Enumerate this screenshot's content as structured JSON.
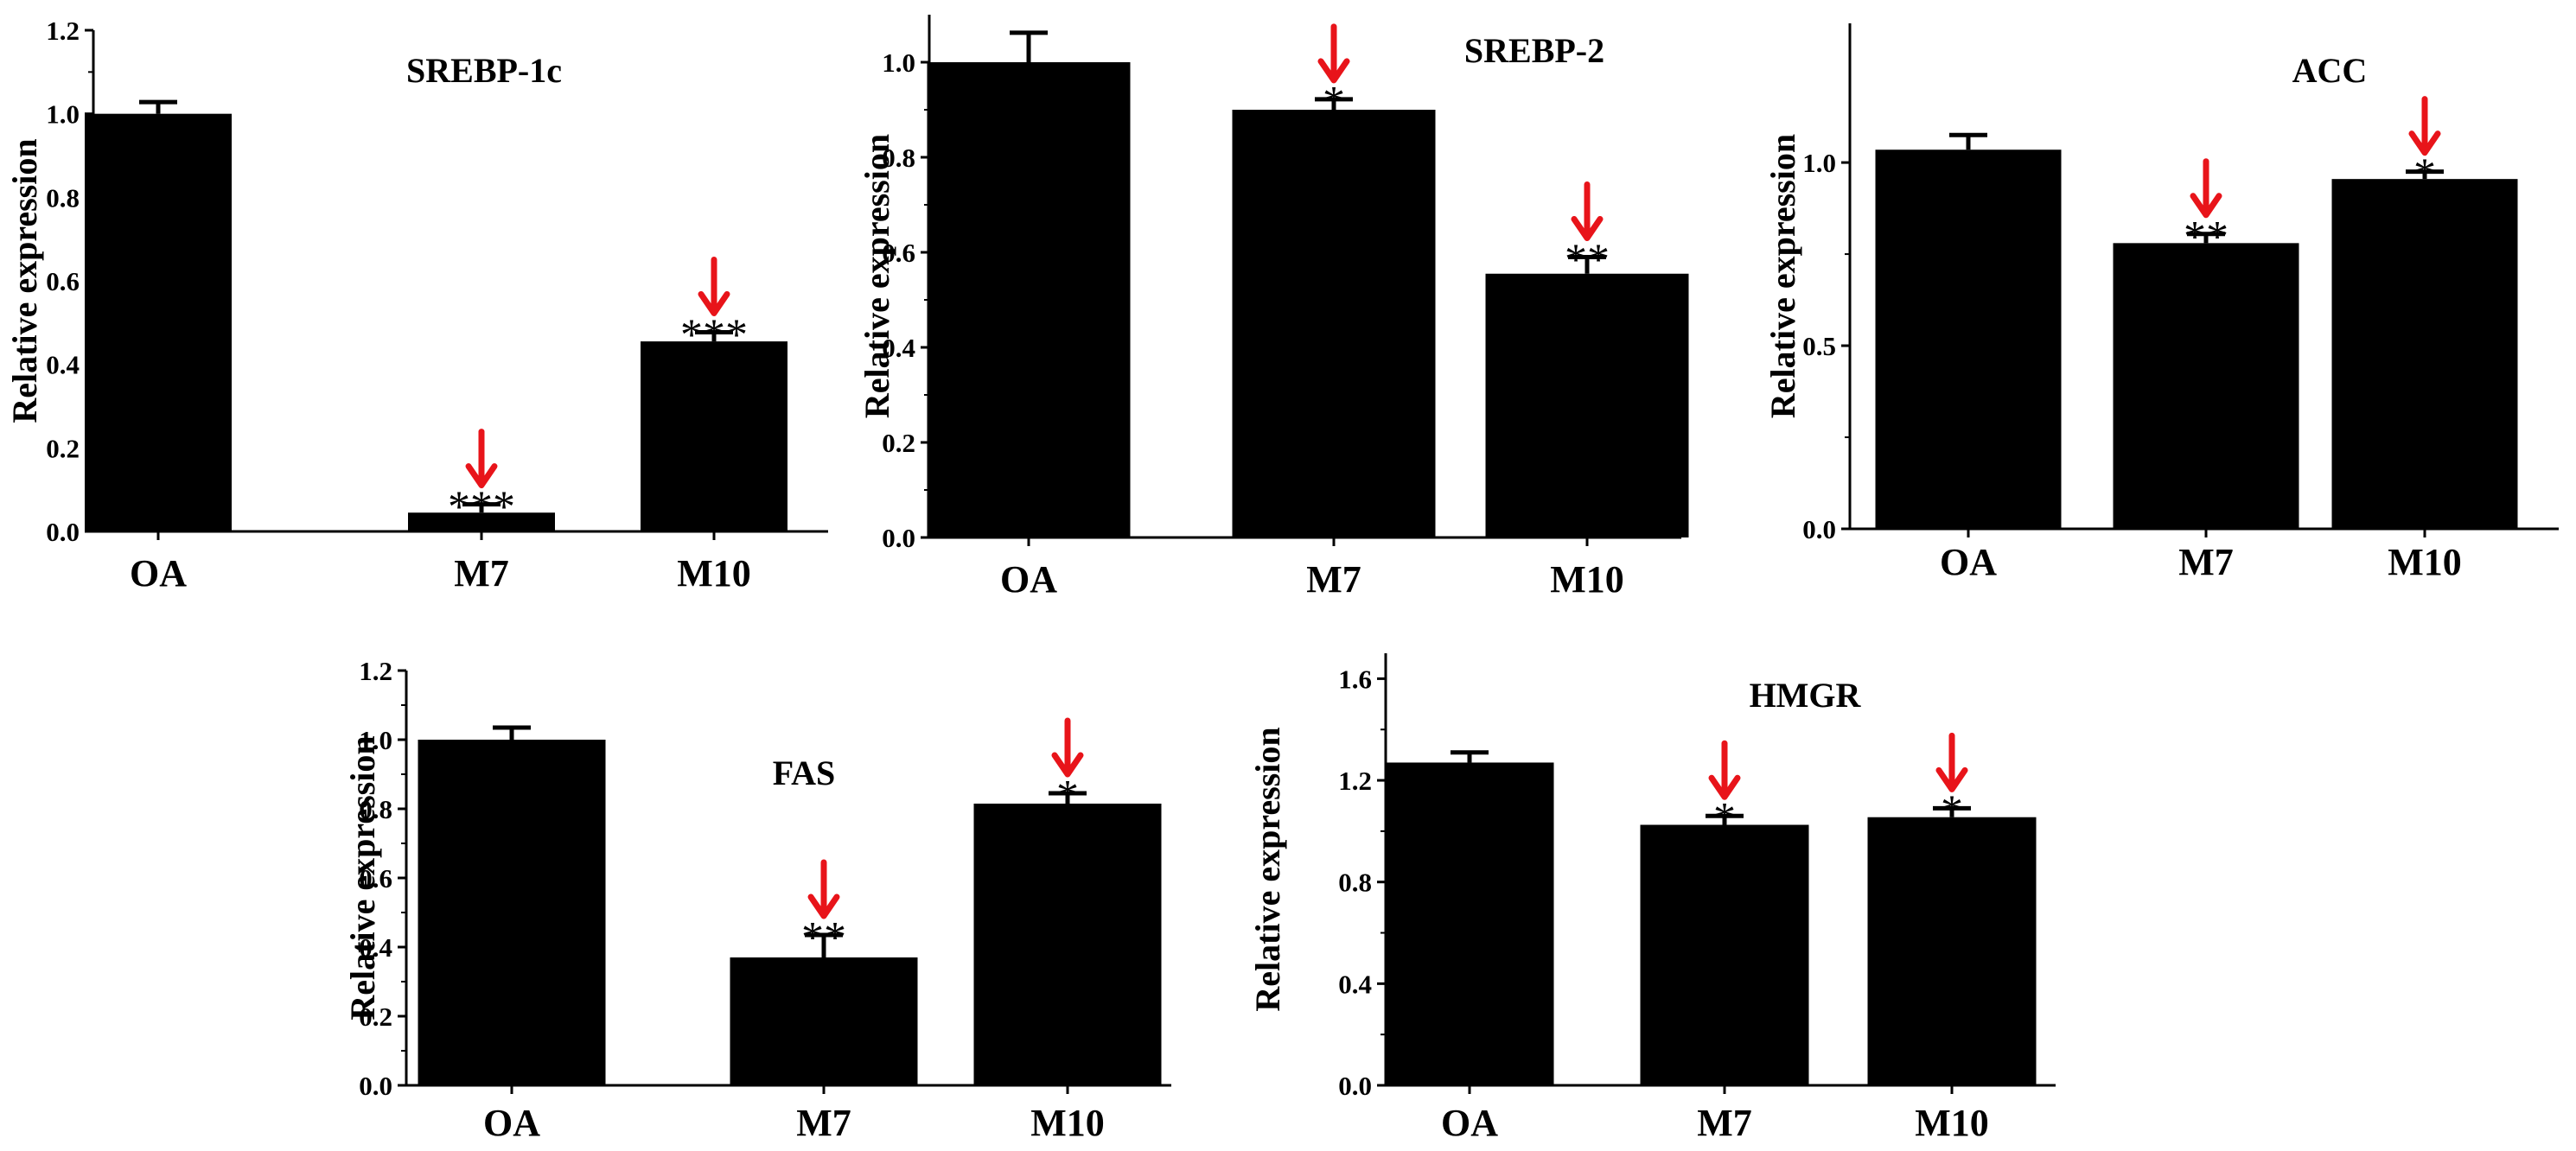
{
  "chart_data": [
    {
      "type": "bar",
      "title": "SREBP-1c",
      "ylabel": "Relative expression",
      "xlabel": "",
      "categories": [
        "OA",
        "M7",
        "M10"
      ],
      "values": [
        1.0,
        0.045,
        0.455
      ],
      "errors": [
        0.028,
        0.02,
        0.022
      ],
      "significance": [
        "",
        "***",
        "***"
      ],
      "highlight_arrows": [
        false,
        true,
        true
      ],
      "arrow_color": "#e8141a",
      "ylim": [
        0,
        1.2
      ],
      "yticks": [
        "0.0",
        "0.2",
        "0.4",
        "0.6",
        "0.8",
        "1.0",
        "1.2"
      ],
      "ytick_values": [
        0,
        0.2,
        0.4,
        0.6,
        0.8,
        1.0,
        1.2
      ]
    },
    {
      "type": "bar",
      "title": "SREBP-2",
      "ylabel": "Relative expression",
      "xlabel": "",
      "categories": [
        "OA",
        "M7",
        "M10"
      ],
      "values": [
        1.0,
        0.9,
        0.555
      ],
      "errors": [
        0.062,
        0.022,
        0.035
      ],
      "significance": [
        "",
        "*",
        "**"
      ],
      "highlight_arrows": [
        false,
        true,
        true
      ],
      "arrow_color": "#e8141a",
      "ylim": [
        0,
        1.1
      ],
      "yticks": [
        "0.0",
        "0.2",
        "0.4",
        "0.6",
        "0.8",
        "1.0"
      ],
      "ytick_values": [
        0,
        0.2,
        0.4,
        0.6,
        0.8,
        1.0
      ]
    },
    {
      "type": "bar",
      "title": "ACC",
      "ylabel": "Relative expression",
      "xlabel": "",
      "categories": [
        "OA",
        "M7",
        "M10"
      ],
      "values": [
        1.035,
        0.78,
        0.955
      ],
      "errors": [
        0.04,
        0.025,
        0.02
      ],
      "significance": [
        "",
        "**",
        "*"
      ],
      "highlight_arrows": [
        false,
        true,
        true
      ],
      "arrow_color": "#e8141a",
      "ylim": [
        0,
        1.38
      ],
      "yticks": [
        "0.0",
        "0.5",
        "1.0"
      ],
      "ytick_values": [
        0,
        0.5,
        1.0
      ]
    },
    {
      "type": "bar",
      "title": "FAS",
      "ylabel": "Relative expression",
      "xlabel": "",
      "categories": [
        "OA",
        "M7",
        "M10"
      ],
      "values": [
        1.0,
        0.37,
        0.815
      ],
      "errors": [
        0.035,
        0.065,
        0.03
      ],
      "significance": [
        "",
        "**",
        "*"
      ],
      "highlight_arrows": [
        false,
        true,
        true
      ],
      "arrow_color": "#e8141a",
      "ylim": [
        0,
        1.2
      ],
      "yticks": [
        "0.0",
        "0.2",
        "0.4",
        "0.6",
        "0.8",
        "1.0",
        "1.2"
      ],
      "ytick_values": [
        0,
        0.2,
        0.4,
        0.6,
        0.8,
        1.0,
        1.2
      ]
    },
    {
      "type": "bar",
      "title": "HMGR",
      "ylabel": "Relative expression",
      "xlabel": "",
      "categories": [
        "OA",
        "M7",
        "M10"
      ],
      "values": [
        1.27,
        1.025,
        1.055
      ],
      "errors": [
        0.04,
        0.035,
        0.035
      ],
      "significance": [
        "",
        "*",
        "*"
      ],
      "highlight_arrows": [
        false,
        true,
        true
      ],
      "arrow_color": "#e8141a",
      "ylim": [
        0,
        1.7
      ],
      "yticks": [
        "0.0",
        "0.4",
        "0.8",
        "1.2",
        "1.6"
      ],
      "ytick_values": [
        0,
        0.4,
        0.8,
        1.2,
        1.6
      ]
    }
  ]
}
